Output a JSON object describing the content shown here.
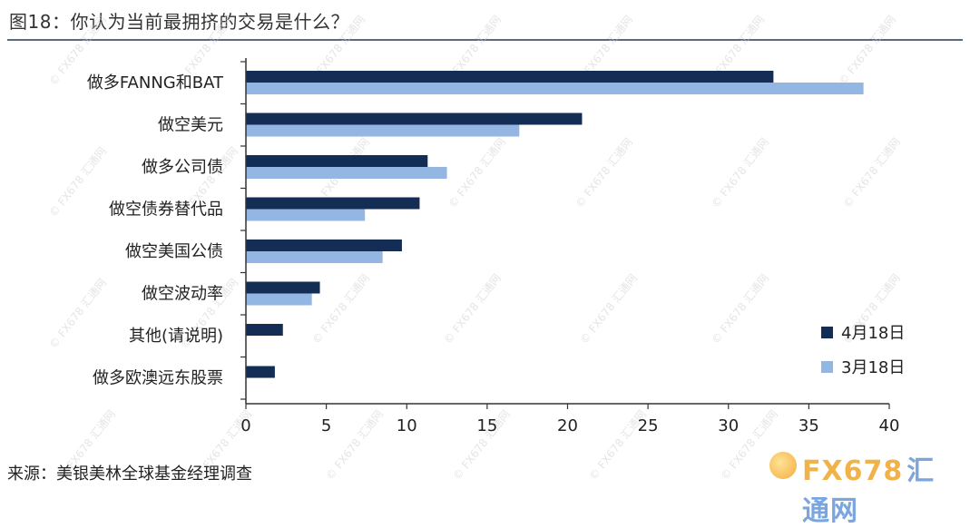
{
  "header": {
    "title": "图18：你认为当前最拥挤的交易是什么？"
  },
  "footer": {
    "source": "来源：美银美林全球基金经理调查"
  },
  "brand": {
    "logo_latin": "FX678",
    "logo_cn": "汇通网",
    "watermark": "© FX678 汇通网"
  },
  "colors": {
    "series1": "#142d55",
    "series2": "#94b6e3",
    "axis": "#333333",
    "rule": "#5a6a82"
  },
  "chart_data": {
    "type": "bar",
    "orientation": "horizontal",
    "categories": [
      "做多FANNG和BAT",
      "做空美元",
      "做多公司债",
      "做空债券替代品",
      "做空美国公债",
      "做空波动率",
      "其他(请说明)",
      "做多欧澳远东股票"
    ],
    "series": [
      {
        "name": "4月18日",
        "values": [
          32.8,
          20.9,
          11.3,
          10.8,
          9.7,
          4.6,
          2.3,
          1.8
        ]
      },
      {
        "name": "3月18日",
        "values": [
          38.4,
          17.0,
          12.5,
          7.4,
          8.5,
          4.1,
          0,
          0
        ]
      }
    ],
    "xlim": [
      0,
      40
    ],
    "xticks": [
      0,
      5,
      10,
      15,
      20,
      25,
      30,
      35,
      40
    ],
    "xlabel": "",
    "ylabel": "",
    "grid": false,
    "legend_position": "bottom-right"
  }
}
